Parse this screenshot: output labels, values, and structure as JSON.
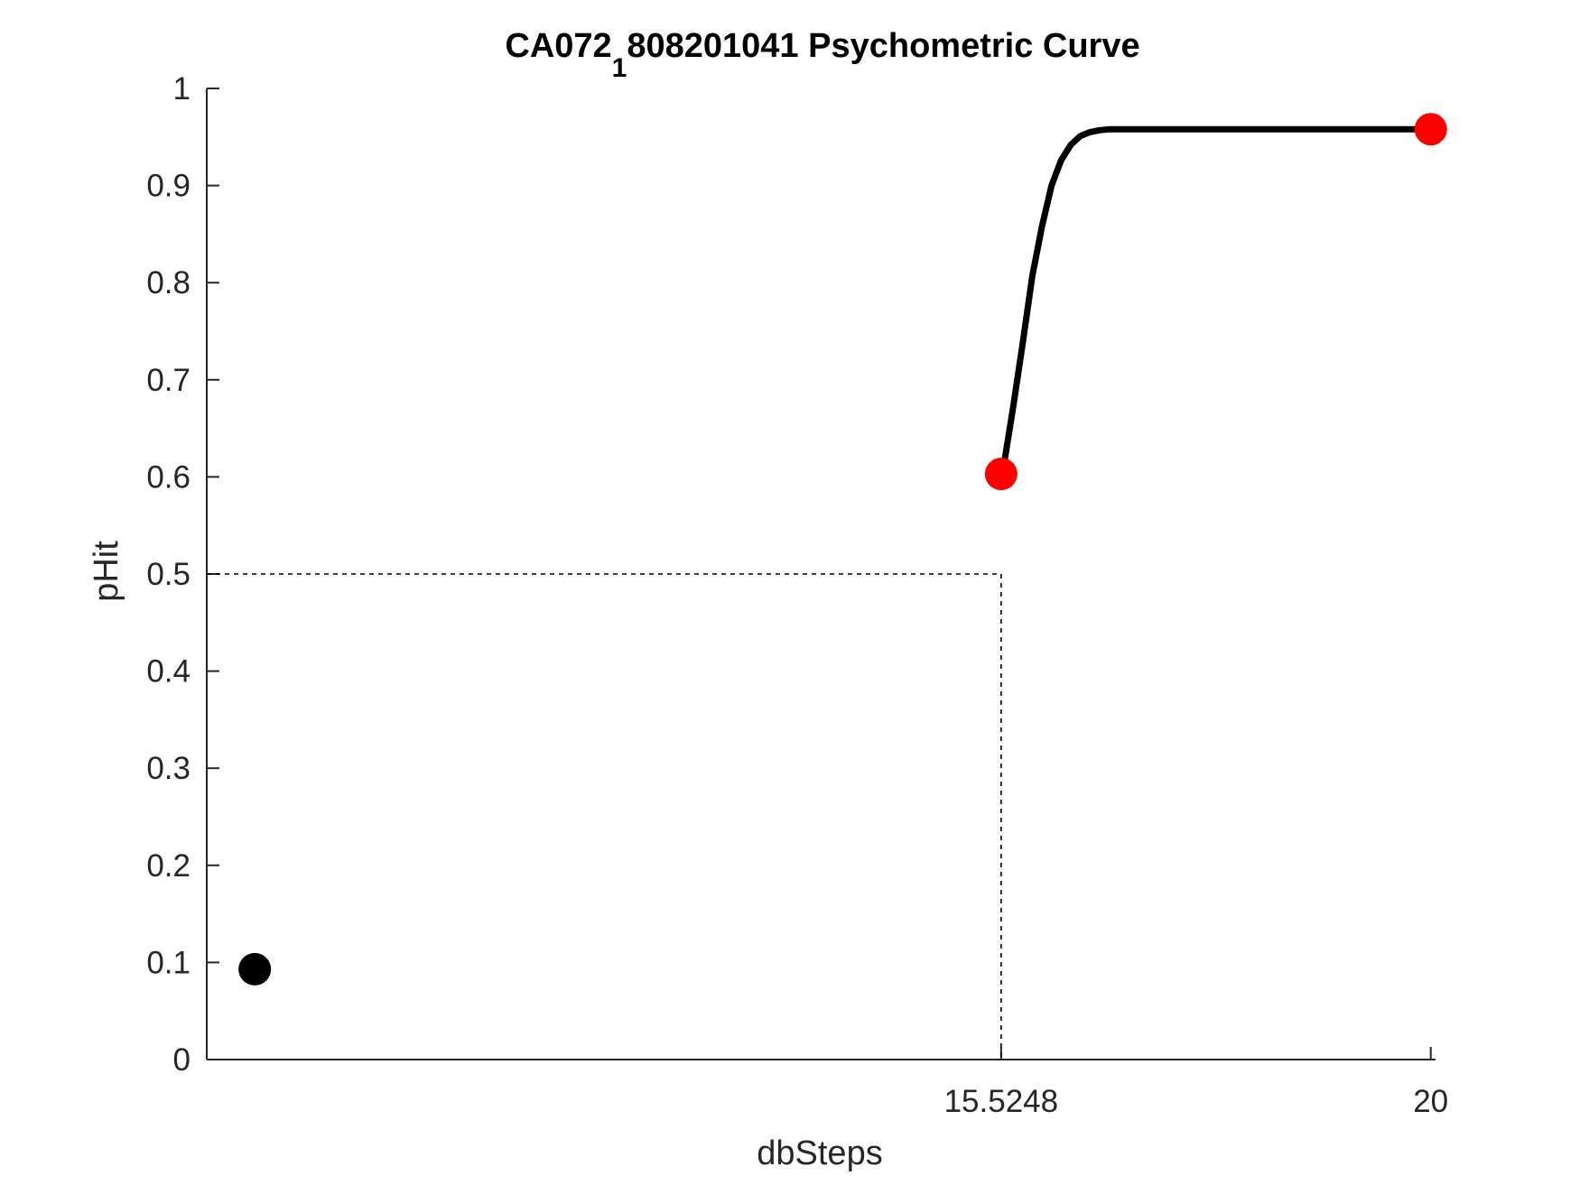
{
  "chart_data": {
    "type": "line",
    "title_main": "CA072",
    "title_subscript": "1",
    "title_rest": "808201041 Psychometric Curve",
    "xlabel": "dbSteps",
    "ylabel": "pHit",
    "xlim": [
      7.25,
      20.05
    ],
    "ylim": [
      0,
      1
    ],
    "x_ticks": [
      15.5248,
      20
    ],
    "x_tick_labels": [
      "15.5248",
      "20"
    ],
    "y_ticks": [
      0,
      0.1,
      0.2,
      0.3,
      0.4,
      0.5,
      0.6,
      0.7,
      0.8,
      0.9,
      1
    ],
    "y_tick_labels": [
      "0",
      "0.1",
      "0.2",
      "0.3",
      "0.4",
      "0.5",
      "0.6",
      "0.7",
      "0.8",
      "0.9",
      "1"
    ],
    "threshold": {
      "x": 15.5248,
      "y": 0.5,
      "style": "dashed",
      "color": "#000000"
    },
    "fit_curve": {
      "name": "fit",
      "color": "#000000",
      "x": [
        15.55,
        15.65,
        15.75,
        15.85,
        15.95,
        16.05,
        16.15,
        16.25,
        16.35,
        16.45,
        16.55,
        16.65,
        16.8,
        17.0,
        17.5,
        18.5,
        20.0
      ],
      "y": [
        0.61,
        0.672,
        0.738,
        0.807,
        0.858,
        0.9,
        0.926,
        0.942,
        0.951,
        0.955,
        0.957,
        0.958,
        0.958,
        0.958,
        0.958,
        0.958,
        0.958
      ]
    },
    "points": [
      {
        "x": 15.5248,
        "y": 0.603,
        "color": "#ff0000"
      },
      {
        "x": 20,
        "y": 0.958,
        "color": "#ff0000"
      },
      {
        "x": 7.75,
        "y": 0.093,
        "color": "#000000"
      }
    ]
  }
}
